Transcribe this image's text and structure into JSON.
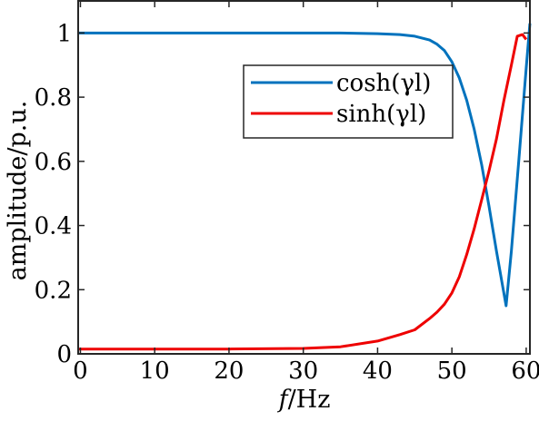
{
  "chart_data": {
    "type": "line",
    "xlabel_italic": "f",
    "xlabel_rest": "/Hz",
    "ylabel": "amplitude/p.u.",
    "xlim": [
      -0.3,
      60.5
    ],
    "ylim": [
      0,
      1.1
    ],
    "xticks": [
      0,
      10,
      20,
      30,
      40,
      50,
      60
    ],
    "xtick_labels": [
      "0",
      "10",
      "20",
      "30",
      "40",
      "50",
      "60"
    ],
    "yticks": [
      0,
      0.2,
      0.4,
      0.6,
      0.8,
      1
    ],
    "ytick_labels": [
      "0",
      "0.2",
      "0.4",
      "0.6",
      "0.8",
      "1"
    ],
    "grid": false,
    "legend_position": "top-right",
    "series": [
      {
        "name": "cosh(γl)",
        "color": "#0072BD",
        "x": [
          -0.3,
          10,
          20,
          30,
          35,
          40,
          43,
          45,
          47,
          48,
          49,
          50,
          51,
          52,
          53,
          54,
          55,
          56,
          57.3,
          58,
          59,
          60,
          60.5
        ],
        "y": [
          1.0,
          1.0,
          1.0,
          1.0,
          1.0,
          0.998,
          0.995,
          0.99,
          0.978,
          0.965,
          0.945,
          0.91,
          0.86,
          0.79,
          0.7,
          0.59,
          0.46,
          0.32,
          0.15,
          0.32,
          0.6,
          0.89,
          1.03
        ]
      },
      {
        "name": "sinh(γl)",
        "color": "#EE0000",
        "x": [
          -0.3,
          10,
          20,
          30,
          35,
          40,
          43,
          45,
          47,
          48,
          49,
          50,
          51,
          52,
          53,
          54,
          55,
          56,
          57,
          58,
          58.8,
          59.5,
          60
        ],
        "y": [
          0.015,
          0.015,
          0.015,
          0.017,
          0.022,
          0.04,
          0.06,
          0.075,
          0.11,
          0.13,
          0.155,
          0.19,
          0.24,
          0.31,
          0.39,
          0.48,
          0.57,
          0.67,
          0.79,
          0.9,
          0.99,
          0.995,
          0.98
        ]
      }
    ]
  }
}
